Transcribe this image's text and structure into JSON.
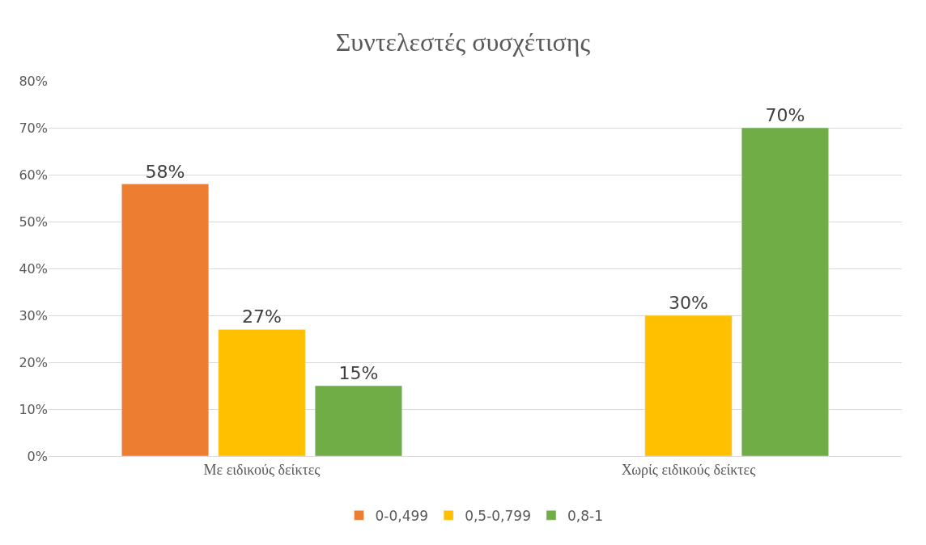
{
  "chart_data": {
    "type": "bar",
    "title": "Συντελεστές συσχέτισης",
    "categories": [
      "Με ειδικούς δείκτες",
      "Χωρίς ειδικούς δείκτες"
    ],
    "series": [
      {
        "name": "0-0,499",
        "color": "#ed7d31",
        "values": [
          58,
          null
        ],
        "value_labels": [
          "58%",
          null
        ]
      },
      {
        "name": "0,5-0,799",
        "color": "#ffc000",
        "values": [
          27,
          30
        ],
        "value_labels": [
          "27%",
          "30%"
        ]
      },
      {
        "name": "0,8-1",
        "color": "#70ad47",
        "values": [
          15,
          70
        ],
        "value_labels": [
          "15%",
          "70%"
        ]
      }
    ],
    "ylim": [
      0,
      80
    ],
    "yticks": [
      {
        "value": 0,
        "label": "0%"
      },
      {
        "value": 10,
        "label": "10%"
      },
      {
        "value": 20,
        "label": "20%"
      },
      {
        "value": 30,
        "label": "30%"
      },
      {
        "value": 40,
        "label": "40%"
      },
      {
        "value": 50,
        "label": "50%"
      },
      {
        "value": 60,
        "label": "60%"
      },
      {
        "value": 70,
        "label": "70%"
      },
      {
        "value": 80,
        "label": "80%"
      }
    ],
    "grid": "y",
    "legend": "bottom"
  }
}
